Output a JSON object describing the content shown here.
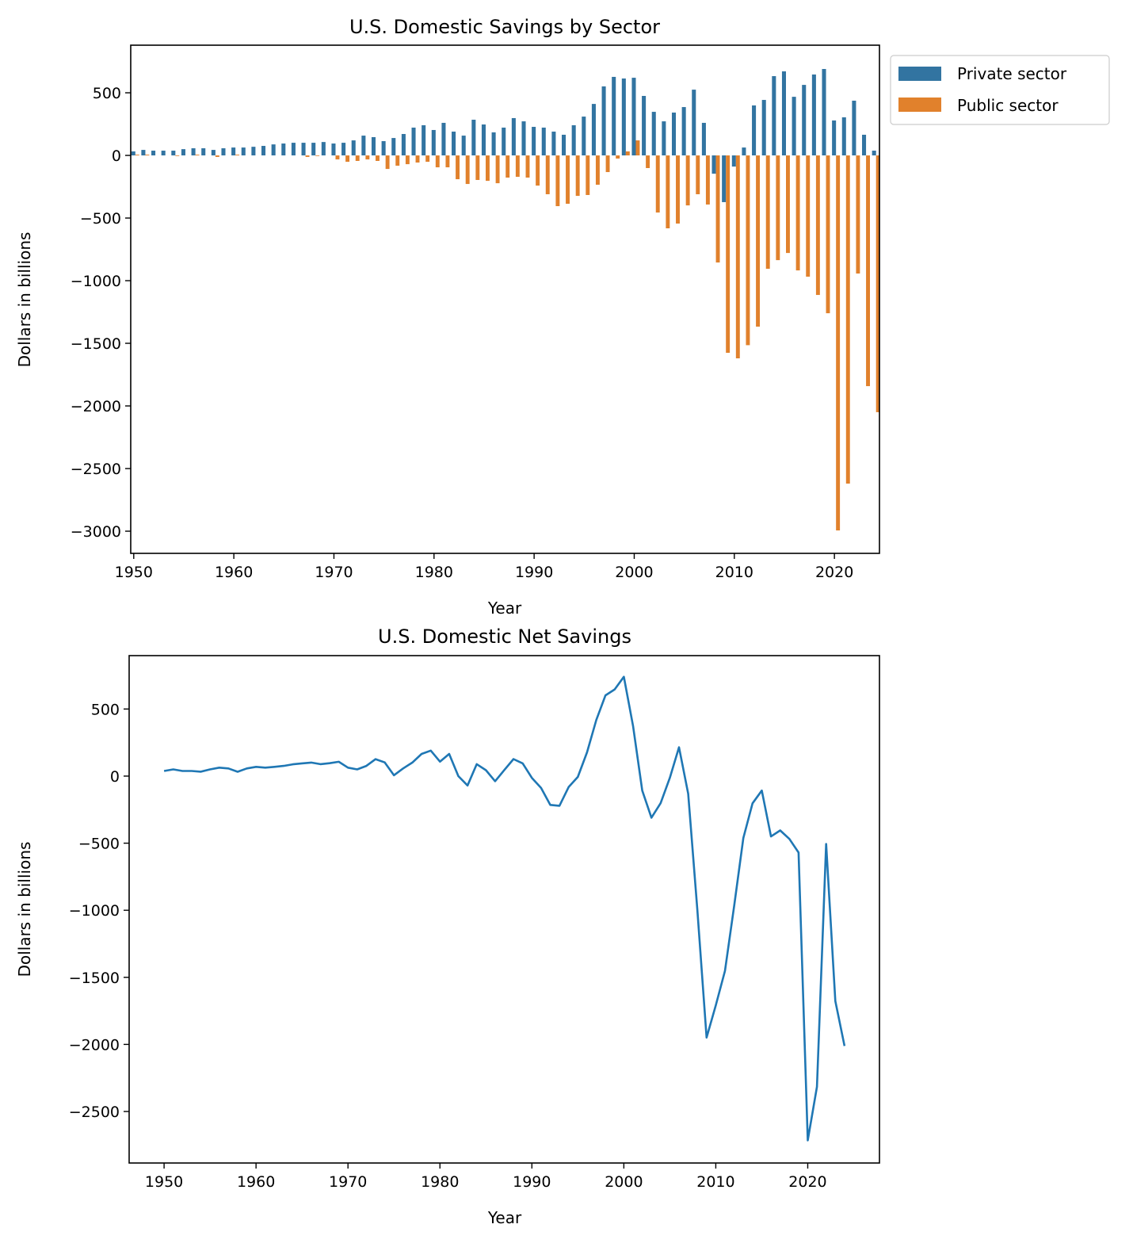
{
  "chart_data": [
    {
      "type": "bar",
      "title": "U.S. Domestic Savings by Sector",
      "xlabel": "Year",
      "ylabel": "Dollars in billions",
      "xlim": [
        1949.7,
        2024.5
      ],
      "ylim": [
        -3177,
        880
      ],
      "xticks": [
        1950,
        1960,
        1970,
        1980,
        1990,
        2000,
        2010,
        2020
      ],
      "yticks": [
        500,
        0,
        -500,
        -1000,
        -1500,
        -2000,
        -2500,
        -3000
      ],
      "ytick_labels": [
        "500",
        "0",
        "−500",
        "−1000",
        "−1500",
        "−2000",
        "−2500",
        "−3000"
      ],
      "legend_placement": "outside-top-right",
      "grid": false,
      "x": [
        1950,
        1951,
        1952,
        1953,
        1954,
        1955,
        1956,
        1957,
        1958,
        1959,
        1960,
        1961,
        1962,
        1963,
        1964,
        1965,
        1966,
        1967,
        1968,
        1969,
        1970,
        1971,
        1972,
        1973,
        1974,
        1975,
        1976,
        1977,
        1978,
        1979,
        1980,
        1981,
        1982,
        1983,
        1984,
        1985,
        1986,
        1987,
        1988,
        1989,
        1990,
        1991,
        1992,
        1993,
        1994,
        1995,
        1996,
        1997,
        1998,
        1999,
        2000,
        2001,
        2002,
        2003,
        2004,
        2005,
        2006,
        2007,
        2008,
        2009,
        2010,
        2011,
        2012,
        2013,
        2014,
        2015,
        2016,
        2017,
        2018,
        2019,
        2020,
        2021,
        2022,
        2023,
        2024
      ],
      "series": [
        {
          "name": "Private sector",
          "color": "#3274a1",
          "values": [
            32,
            44,
            38,
            38,
            38,
            50,
            57,
            57,
            44,
            57,
            63,
            63,
            69,
            76,
            88,
            95,
            101,
            101,
            101,
            107,
            95,
            101,
            120,
            158,
            146,
            114,
            139,
            171,
            222,
            241,
            203,
            260,
            190,
            158,
            285,
            247,
            184,
            222,
            298,
            272,
            228,
            222,
            190,
            165,
            241,
            310,
            411,
            551,
            627,
            614,
            620,
            475,
            348,
            272,
            342,
            386,
            525,
            260,
            -146,
            -373,
            -89,
            63,
            399,
            443,
            633,
            671,
            468,
            563,
            646,
            690,
            279,
            304,
            437,
            165,
            38
          ]
        },
        {
          "name": "Public sector",
          "color": "#e1812c",
          "values": [
            6,
            6,
            0,
            0,
            -5,
            0,
            6,
            0,
            -12,
            0,
            6,
            0,
            0,
            0,
            0,
            0,
            0,
            -12,
            -5,
            0,
            -32,
            -51,
            -44,
            -32,
            -44,
            -108,
            -82,
            -70,
            -57,
            -51,
            -95,
            -95,
            -190,
            -228,
            -196,
            -203,
            -222,
            -177,
            -171,
            -177,
            -241,
            -310,
            -405,
            -386,
            -323,
            -316,
            -234,
            -133,
            -25,
            32,
            120,
            -101,
            -456,
            -582,
            -544,
            -399,
            -310,
            -392,
            -855,
            -1576,
            -1620,
            -1515,
            -1367,
            -905,
            -836,
            -779,
            -918,
            -968,
            -1114,
            -1260,
            -2994,
            -2620,
            -943,
            -1842,
            -2050
          ]
        }
      ]
    },
    {
      "type": "line",
      "title": "U.S. Domestic Net Savings",
      "xlabel": "Year",
      "ylabel": "Dollars in billions",
      "xlim": [
        1946.2,
        2027.8
      ],
      "ylim": [
        -2884,
        898
      ],
      "xticks": [
        1950,
        1960,
        1970,
        1980,
        1990,
        2000,
        2010,
        2020
      ],
      "yticks": [
        500,
        0,
        -500,
        -1000,
        -1500,
        -2000,
        -2500
      ],
      "ytick_labels": [
        "500",
        "0",
        "−500",
        "−1000",
        "−1500",
        "−2000",
        "−2500"
      ],
      "grid": false,
      "color": "#1f77b4",
      "x": [
        1950,
        1951,
        1952,
        1953,
        1954,
        1955,
        1956,
        1957,
        1958,
        1959,
        1960,
        1961,
        1962,
        1963,
        1964,
        1965,
        1966,
        1967,
        1968,
        1969,
        1970,
        1971,
        1972,
        1973,
        1974,
        1975,
        1976,
        1977,
        1978,
        1979,
        1980,
        1981,
        1982,
        1983,
        1984,
        1985,
        1986,
        1987,
        1988,
        1989,
        1990,
        1991,
        1992,
        1993,
        1994,
        1995,
        1996,
        1997,
        1998,
        1999,
        2000,
        2001,
        2002,
        2003,
        2004,
        2005,
        2006,
        2007,
        2008,
        2009,
        2010,
        2011,
        2012,
        2013,
        2014,
        2015,
        2016,
        2017,
        2018,
        2019,
        2020,
        2021,
        2022,
        2023,
        2024
      ],
      "values": [
        38,
        50,
        38,
        38,
        33,
        50,
        63,
        57,
        32,
        57,
        69,
        63,
        69,
        76,
        88,
        95,
        101,
        89,
        96,
        107,
        63,
        50,
        76,
        126,
        102,
        6,
        57,
        101,
        165,
        190,
        108,
        165,
        0,
        -70,
        89,
        44,
        -38,
        45,
        127,
        95,
        -13,
        -88,
        -215,
        -221,
        -82,
        -6,
        177,
        418,
        602,
        646,
        740,
        374,
        -108,
        -310,
        -202,
        -13,
        215,
        -132,
        -1001,
        -1949,
        -1709,
        -1452,
        -968,
        -462,
        -203,
        -108,
        -450,
        -405,
        -468,
        -570,
        -2715,
        -2316,
        -506,
        -1677,
        -2012
      ]
    }
  ]
}
